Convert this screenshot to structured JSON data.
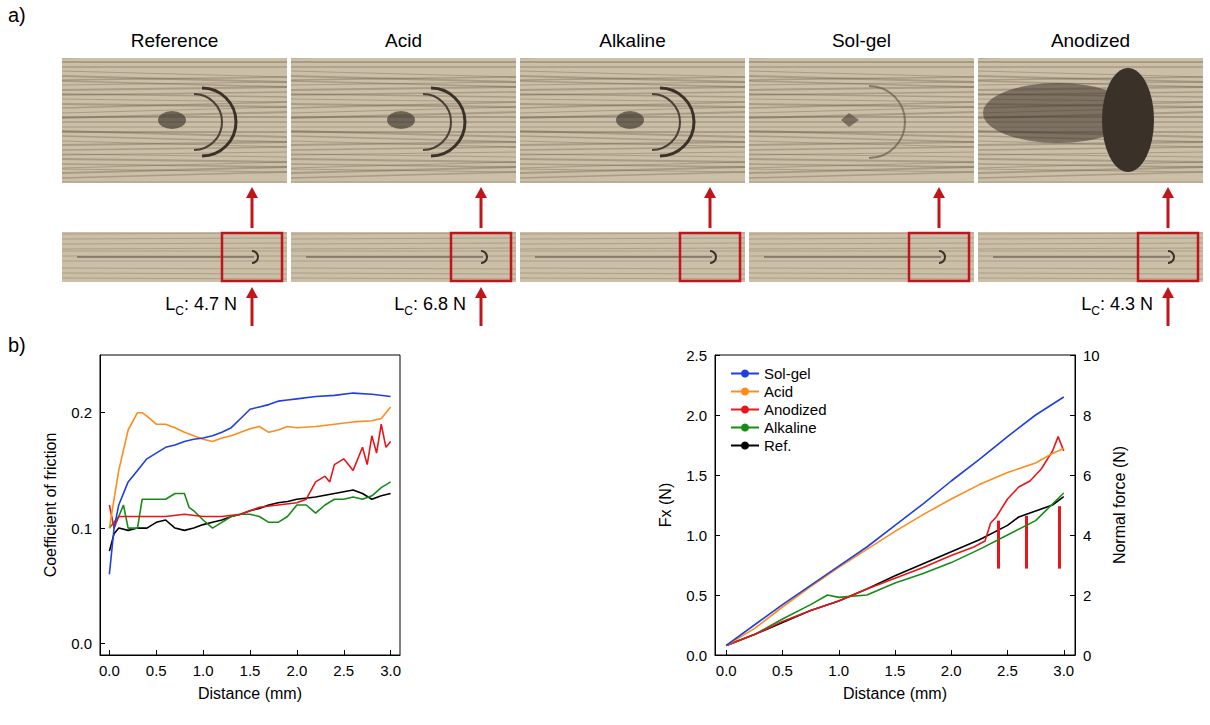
{
  "panel_a": {
    "letter": "a)",
    "samples": [
      {
        "name": "Reference",
        "critical_load": {
          "main": "L",
          "sub": "C",
          "text": ": 4.7 N"
        }
      },
      {
        "name": "Acid",
        "critical_load": {
          "main": "L",
          "sub": "C",
          "text": ": 6.8 N"
        }
      },
      {
        "name": "Alkaline"
      },
      {
        "name": "Sol-gel"
      },
      {
        "name": "Anodized",
        "critical_load": {
          "main": "L",
          "sub": "C",
          "text": ": 4.3 N"
        }
      }
    ]
  },
  "panel_b_letter": "b)",
  "chart_data": [
    {
      "type": "line",
      "x_label": "Distance (mm)",
      "y_label": "Coefficient of friction",
      "xlim": [
        -0.1,
        3.1
      ],
      "xticks": [
        {
          "value": 0,
          "label": "0.0"
        },
        0.5,
        {
          "value": 1,
          "label": "1.0"
        },
        1.5,
        {
          "value": 2,
          "label": "2.0"
        },
        2.5,
        {
          "value": 3,
          "label": "3.0"
        }
      ],
      "ylim": [
        -0.01,
        0.25
      ],
      "yticks": [
        {
          "value": 0,
          "label": "0.0"
        },
        0.1,
        0.2
      ],
      "grid": false,
      "series": [
        {
          "name": "Sol-gel",
          "color": "#1f3fe0",
          "x": [
            0,
            0.05,
            0.1,
            0.2,
            0.3,
            0.4,
            0.5,
            0.6,
            0.7,
            0.8,
            0.9,
            1.0,
            1.1,
            1.2,
            1.3,
            1.4,
            1.5,
            1.6,
            1.7,
            1.8,
            1.9,
            2.0,
            2.2,
            2.4,
            2.6,
            2.8,
            3.0
          ],
          "values": [
            0.06,
            0.1,
            0.12,
            0.14,
            0.15,
            0.16,
            0.165,
            0.17,
            0.172,
            0.175,
            0.177,
            0.178,
            0.18,
            0.183,
            0.187,
            0.195,
            0.203,
            0.205,
            0.207,
            0.21,
            0.211,
            0.212,
            0.214,
            0.215,
            0.217,
            0.216,
            0.214
          ]
        },
        {
          "name": "Acid",
          "color": "#ff8c1a",
          "x": [
            0,
            0.1,
            0.2,
            0.3,
            0.35,
            0.4,
            0.5,
            0.6,
            0.7,
            0.8,
            0.9,
            1.0,
            1.1,
            1.2,
            1.3,
            1.4,
            1.5,
            1.6,
            1.7,
            1.8,
            1.9,
            2.0,
            2.2,
            2.4,
            2.6,
            2.8,
            2.9,
            3.0
          ],
          "values": [
            0.1,
            0.15,
            0.185,
            0.2,
            0.2,
            0.197,
            0.19,
            0.19,
            0.187,
            0.183,
            0.18,
            0.177,
            0.175,
            0.178,
            0.18,
            0.183,
            0.186,
            0.188,
            0.183,
            0.185,
            0.188,
            0.187,
            0.188,
            0.19,
            0.192,
            0.193,
            0.195,
            0.205
          ]
        },
        {
          "name": "Anodized",
          "color": "#e8161b",
          "x": [
            0,
            0.05,
            0.1,
            0.2,
            0.4,
            0.6,
            0.8,
            1.0,
            1.2,
            1.4,
            1.6,
            1.8,
            2.0,
            2.1,
            2.2,
            2.3,
            2.35,
            2.4,
            2.5,
            2.6,
            2.7,
            2.75,
            2.8,
            2.85,
            2.9,
            2.95,
            3.0
          ],
          "values": [
            0.12,
            0.1,
            0.11,
            0.11,
            0.11,
            0.11,
            0.112,
            0.11,
            0.11,
            0.112,
            0.118,
            0.12,
            0.122,
            0.125,
            0.14,
            0.145,
            0.14,
            0.155,
            0.16,
            0.15,
            0.17,
            0.155,
            0.18,
            0.165,
            0.19,
            0.17,
            0.175
          ]
        },
        {
          "name": "Alkaline",
          "color": "#168c16",
          "x": [
            0,
            0.1,
            0.15,
            0.2,
            0.3,
            0.35,
            0.5,
            0.6,
            0.7,
            0.8,
            0.85,
            0.9,
            1.0,
            1.1,
            1.2,
            1.3,
            1.4,
            1.5,
            1.6,
            1.7,
            1.8,
            1.9,
            2.0,
            2.1,
            2.2,
            2.3,
            2.4,
            2.5,
            2.6,
            2.7,
            2.8,
            2.9,
            3.0
          ],
          "values": [
            0.1,
            0.11,
            0.12,
            0.1,
            0.1,
            0.125,
            0.125,
            0.125,
            0.13,
            0.13,
            0.118,
            0.115,
            0.107,
            0.1,
            0.105,
            0.11,
            0.112,
            0.112,
            0.11,
            0.105,
            0.105,
            0.11,
            0.12,
            0.12,
            0.113,
            0.12,
            0.125,
            0.125,
            0.127,
            0.125,
            0.128,
            0.135,
            0.14
          ]
        },
        {
          "name": "Ref.",
          "color": "#000000",
          "x": [
            0,
            0.05,
            0.1,
            0.2,
            0.3,
            0.4,
            0.5,
            0.6,
            0.7,
            0.8,
            0.9,
            1.0,
            1.1,
            1.2,
            1.3,
            1.4,
            1.5,
            1.6,
            1.7,
            1.8,
            1.9,
            2.0,
            2.2,
            2.4,
            2.6,
            2.7,
            2.8,
            2.9,
            3.0
          ],
          "values": [
            0.08,
            0.095,
            0.1,
            0.098,
            0.1,
            0.1,
            0.105,
            0.107,
            0.1,
            0.098,
            0.1,
            0.103,
            0.105,
            0.107,
            0.11,
            0.112,
            0.115,
            0.117,
            0.12,
            0.122,
            0.123,
            0.125,
            0.127,
            0.13,
            0.133,
            0.13,
            0.125,
            0.128,
            0.13
          ]
        }
      ]
    },
    {
      "type": "line",
      "x_label": "Distance (mm)",
      "y_label": "Fx (N)",
      "y2_label": "Normal force (N)",
      "xlim": [
        -0.1,
        3.1
      ],
      "xticks": [
        {
          "value": 0,
          "label": "0.0"
        },
        0.5,
        {
          "value": 1,
          "label": "1.0"
        },
        1.5,
        {
          "value": 2,
          "label": "2.0"
        },
        2.5,
        {
          "value": 3,
          "label": "3.0"
        }
      ],
      "ylim": [
        0,
        2.5
      ],
      "yticks": [
        {
          "value": 0,
          "label": "0.0"
        },
        0.5,
        {
          "value": 1,
          "label": "1.0"
        },
        1.5,
        {
          "value": 2,
          "label": "2.0"
        },
        2.5
      ],
      "y2lim": [
        0,
        10
      ],
      "y2ticks": [
        0,
        2,
        4,
        6,
        8,
        10
      ],
      "grid": false,
      "legend": "upper left",
      "series": [
        {
          "name": "Sol-gel",
          "color": "#1f3fe0",
          "x": [
            0,
            0.25,
            0.5,
            0.75,
            1.0,
            1.25,
            1.5,
            1.75,
            2.0,
            2.25,
            2.5,
            2.75,
            3.0
          ],
          "values": [
            0.08,
            0.25,
            0.42,
            0.58,
            0.74,
            0.9,
            1.08,
            1.26,
            1.45,
            1.63,
            1.82,
            2.0,
            2.15
          ]
        },
        {
          "name": "Acid",
          "color": "#ff8c1a",
          "x": [
            0,
            0.25,
            0.5,
            0.75,
            1.0,
            1.25,
            1.5,
            1.75,
            2.0,
            2.25,
            2.5,
            2.75,
            2.9,
            3.0
          ],
          "values": [
            0.08,
            0.22,
            0.4,
            0.57,
            0.73,
            0.88,
            1.03,
            1.17,
            1.3,
            1.42,
            1.52,
            1.6,
            1.68,
            1.72
          ]
        },
        {
          "name": "Anodized",
          "color": "#e8161b",
          "x": [
            0,
            0.25,
            0.5,
            0.75,
            1.0,
            1.25,
            1.5,
            1.75,
            2.0,
            2.2,
            2.3,
            2.35,
            2.4,
            2.5,
            2.6,
            2.7,
            2.8,
            2.9,
            2.95,
            3.0
          ],
          "values": [
            0.08,
            0.17,
            0.28,
            0.37,
            0.45,
            0.55,
            0.64,
            0.73,
            0.83,
            0.9,
            0.95,
            1.1,
            1.15,
            1.3,
            1.4,
            1.45,
            1.55,
            1.7,
            1.82,
            1.7
          ]
        },
        {
          "name": "Alkaline",
          "color": "#168c16",
          "x": [
            0,
            0.25,
            0.5,
            0.75,
            0.9,
            1.0,
            1.25,
            1.5,
            1.75,
            2.0,
            2.25,
            2.5,
            2.75,
            3.0
          ],
          "values": [
            0.08,
            0.17,
            0.3,
            0.42,
            0.5,
            0.48,
            0.5,
            0.6,
            0.68,
            0.77,
            0.88,
            1.0,
            1.12,
            1.35
          ]
        },
        {
          "name": "Ref.",
          "color": "#000000",
          "x": [
            0,
            0.25,
            0.5,
            0.75,
            1.0,
            1.25,
            1.5,
            1.75,
            2.0,
            2.25,
            2.5,
            2.6,
            2.75,
            2.9,
            3.0
          ],
          "values": [
            0.08,
            0.17,
            0.27,
            0.37,
            0.45,
            0.55,
            0.66,
            0.76,
            0.86,
            0.96,
            1.08,
            1.15,
            1.2,
            1.25,
            1.32
          ]
        }
      ],
      "arrows": [
        {
          "x": 2.42,
          "y_from": 0.72,
          "y_to": 1.12
        },
        {
          "x": 2.67,
          "y_from": 0.72,
          "y_to": 1.16
        },
        {
          "x": 2.96,
          "y_from": 0.72,
          "y_to": 1.24
        }
      ]
    }
  ]
}
